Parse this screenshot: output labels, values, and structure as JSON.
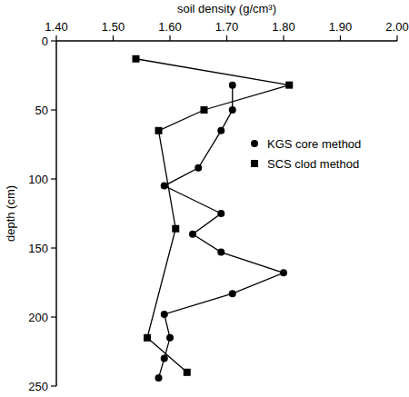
{
  "chart_data": {
    "type": "line",
    "x_label": "soil density (g/cm³)",
    "y_label": "depth (cm)",
    "xlim": [
      1.4,
      2.0
    ],
    "xticks": [
      {
        "value": 1.4,
        "label": "1.40"
      },
      {
        "value": 1.5,
        "label": "1.50"
      },
      {
        "value": 1.6,
        "label": "1.60"
      },
      {
        "value": 1.7,
        "label": "1.70"
      },
      {
        "value": 1.8,
        "label": "1.80"
      },
      {
        "value": 1.9,
        "label": "1.90"
      },
      {
        "value": 2.0,
        "label": "2.00"
      }
    ],
    "ylim": [
      0,
      250
    ],
    "yticks": [
      0,
      50,
      100,
      150,
      200,
      250
    ],
    "grid": false,
    "legend": "right",
    "series": [
      {
        "name": "KGS core method",
        "color": "#000000",
        "marker": "circle",
        "line_style": "solid",
        "x": [
          1.71,
          1.71,
          1.69,
          1.65,
          1.59,
          1.69,
          1.64,
          1.69,
          1.8,
          1.71,
          1.59,
          1.6,
          1.59,
          1.58
        ],
        "values": [
          32,
          50,
          65,
          92,
          105,
          125,
          140,
          153,
          168,
          183,
          198,
          215,
          230,
          244
        ]
      },
      {
        "name": "SCS clod method",
        "color": "#000000",
        "marker": "square",
        "line_style": "solid",
        "x": [
          1.54,
          1.81,
          1.66,
          1.58,
          1.61,
          1.56,
          1.63
        ],
        "values": [
          13,
          32,
          50,
          65,
          136,
          215,
          240
        ]
      }
    ]
  }
}
